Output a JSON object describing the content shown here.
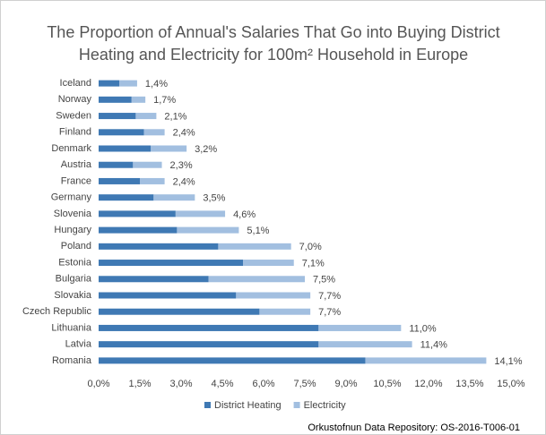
{
  "chart_data": {
    "type": "stacked-barh",
    "title": [
      "The Proportion of Annual's Salaries That Go into Buying District",
      "Heating and Electricity for 100m² Household in Europe"
    ],
    "categories": [
      "Iceland",
      "Norway",
      "Sweden",
      "Finland",
      "Denmark",
      "Austria",
      "France",
      "Germany",
      "Slovenia",
      "Hungary",
      "Poland",
      "Estonia",
      "Bulgaria",
      "Slovakia",
      "Czech Republic",
      "Lithuania",
      "Latvia",
      "Romania"
    ],
    "series": [
      {
        "name": "District Heating",
        "color": "#3f79b4",
        "values": [
          0.75,
          1.2,
          1.35,
          1.65,
          1.9,
          1.25,
          1.5,
          2.0,
          2.8,
          2.85,
          4.35,
          5.25,
          4.0,
          5.0,
          5.85,
          8.0,
          8.0,
          9.7
        ]
      },
      {
        "name": "Electricity",
        "color": "#a2bfe0",
        "values": [
          0.65,
          0.5,
          0.75,
          0.75,
          1.3,
          1.05,
          0.9,
          1.5,
          1.8,
          2.25,
          2.65,
          1.85,
          3.5,
          2.7,
          1.85,
          3.0,
          3.4,
          4.4
        ]
      }
    ],
    "totals": [
      1.4,
      1.7,
      2.1,
      2.4,
      3.2,
      2.3,
      2.4,
      3.5,
      4.6,
      5.1,
      7.0,
      7.1,
      7.5,
      7.7,
      7.7,
      11.0,
      11.4,
      14.1
    ],
    "total_labels": [
      "1,4%",
      "1,7%",
      "2,1%",
      "2,4%",
      "3,2%",
      "2,3%",
      "2,4%",
      "3,5%",
      "4,6%",
      "5,1%",
      "7,0%",
      "7,1%",
      "7,5%",
      "7,7%",
      "7,7%",
      "11,0%",
      "11,4%",
      "14,1%"
    ],
    "xlim": [
      0,
      15
    ],
    "xticks": [
      {
        "value": 0,
        "label": "0,0%"
      },
      {
        "value": 1.5,
        "label": "1,5%"
      },
      {
        "value": 3,
        "label": "3,0%"
      },
      {
        "value": 4.5,
        "label": "4,5%"
      },
      {
        "value": 6,
        "label": "6,0%"
      },
      {
        "value": 7.5,
        "label": "7,5%"
      },
      {
        "value": 9,
        "label": "9,0%"
      },
      {
        "value": 10.5,
        "label": "10,5%"
      },
      {
        "value": 12,
        "label": "12,0%"
      },
      {
        "value": 13.5,
        "label": "13,5%"
      },
      {
        "value": 15,
        "label": "15,0%"
      }
    ],
    "legend": "bottom",
    "source": "Orkustofnun Data Repository: OS-2016-T006-01"
  }
}
